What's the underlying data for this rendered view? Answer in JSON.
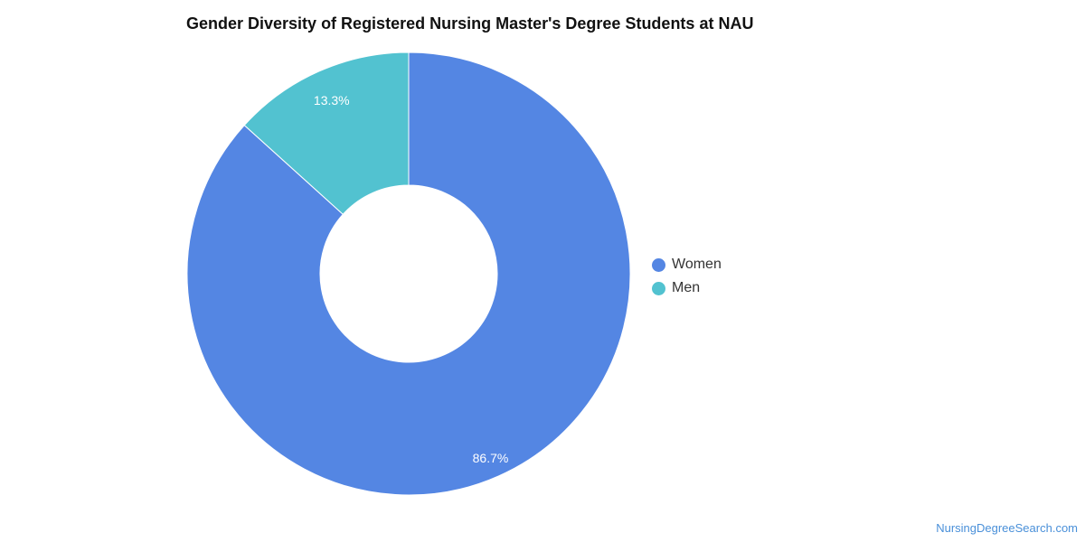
{
  "chart_data": {
    "type": "pie",
    "title": "Gender Diversity of Registered Nursing Master's Degree Students at NAU",
    "series": [
      {
        "name": "Women",
        "value": 86.7,
        "label": "86.7%",
        "color": "#5486e3"
      },
      {
        "name": "Men",
        "value": 13.3,
        "label": "13.3%",
        "color": "#52c2d0"
      }
    ],
    "legend_position": "right"
  },
  "footer": {
    "source": "NursingDegreeSearch.com"
  }
}
